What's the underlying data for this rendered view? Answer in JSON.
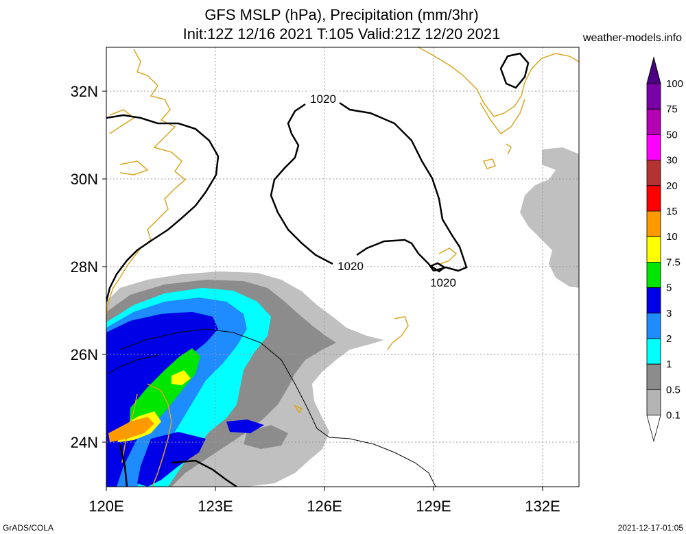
{
  "header": {
    "title_line1": "GFS MSLP (hPa), Precipitation (mm/3hr)",
    "title_line2": "Init:12Z 12/16 2021 T:105 Valid:21Z 12/20 2021",
    "site": "weather-models.info"
  },
  "footer": {
    "software": "GrADS/COLA",
    "timestamp": "2021-12-17-01:05"
  },
  "axes": {
    "x_ticks": [
      "120E",
      "123E",
      "126E",
      "129E",
      "132E"
    ],
    "y_ticks": [
      "32N",
      "30N",
      "28N",
      "26N",
      "24N"
    ]
  },
  "isobars": {
    "labels": [
      "1020",
      "1020",
      "1020"
    ]
  },
  "colorbar": {
    "levels": [
      "100",
      "75",
      "50",
      "30",
      "20",
      "15",
      "10",
      "7.5",
      "5",
      "3",
      "2",
      "1",
      "0.5",
      "0.1"
    ],
    "colors": [
      "#7a00a8",
      "#b400b4",
      "#ff00ff",
      "#b43232",
      "#ff0000",
      "#ff9900",
      "#ffff00",
      "#00e600",
      "#0000e6",
      "#1e8cff",
      "#00ffff",
      "#8c8c8c",
      "#b4b4b4",
      "#ffffff"
    ],
    "top_color": "#4b0082"
  },
  "colors": {
    "coastline": "#daa520",
    "isobar": "#000000",
    "grid": "#999999"
  }
}
